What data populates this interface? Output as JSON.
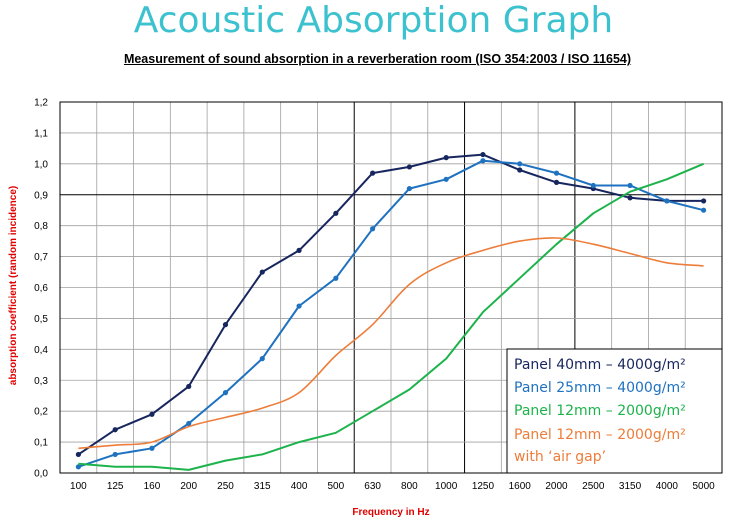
{
  "page": {
    "title": "Acoustic Absorption Graph",
    "subtitle": "Measurement of sound absorption in a reverberation room (ISO 354:2003 / ISO 11654)"
  },
  "chart_data": {
    "type": "line",
    "xlabel": "Frequency in Hz",
    "ylabel": "absorption coefficient (random incidence)",
    "categories": [
      "100",
      "125",
      "160",
      "200",
      "250",
      "315",
      "400",
      "500",
      "630",
      "800",
      "1000",
      "1250",
      "1600",
      "2000",
      "2500",
      "3150",
      "4000",
      "5000"
    ],
    "y_ticks": [
      "0,0",
      "0,1",
      "0,2",
      "0,3",
      "0,4",
      "0,5",
      "0,6",
      "0,7",
      "0,8",
      "0,9",
      "1,0",
      "1,1",
      "1,2"
    ],
    "ylim": [
      0,
      1.2
    ],
    "grid": true,
    "legend_position": "bottom-right",
    "series": [
      {
        "name": "Panel 40mm – 4000g/m²",
        "color": "#17265e",
        "markers": true,
        "smooth": false,
        "values": [
          0.06,
          0.14,
          0.19,
          0.28,
          0.48,
          0.65,
          0.72,
          0.84,
          0.97,
          0.99,
          1.02,
          1.03,
          0.98,
          0.94,
          0.92,
          0.89,
          0.88,
          0.88
        ]
      },
      {
        "name": "Panel 25mm – 4000g/m²",
        "color": "#1f72c0",
        "markers": true,
        "smooth": false,
        "values": [
          0.02,
          0.06,
          0.08,
          0.16,
          0.26,
          0.37,
          0.54,
          0.63,
          0.79,
          0.92,
          0.95,
          1.01,
          1.0,
          0.97,
          0.93,
          0.93,
          0.88,
          0.85
        ]
      },
      {
        "name": "Panel 12mm – 2000g/m²",
        "color": "#1db34c",
        "markers": false,
        "smooth": false,
        "values": [
          0.03,
          0.02,
          0.02,
          0.01,
          0.04,
          0.06,
          0.1,
          0.13,
          0.2,
          0.27,
          0.37,
          0.52,
          0.63,
          0.74,
          0.84,
          0.91,
          0.95,
          1.0
        ]
      },
      {
        "name": "Panel 12mm – 2000g/m²",
        "name_line2": "with ‘air gap’",
        "color": "#ed7d3a",
        "markers": false,
        "smooth": true,
        "values": [
          0.08,
          0.09,
          0.1,
          0.15,
          0.18,
          0.21,
          0.26,
          0.38,
          0.48,
          0.61,
          0.68,
          0.72,
          0.75,
          0.76,
          0.74,
          0.71,
          0.68,
          0.67
        ]
      }
    ]
  }
}
